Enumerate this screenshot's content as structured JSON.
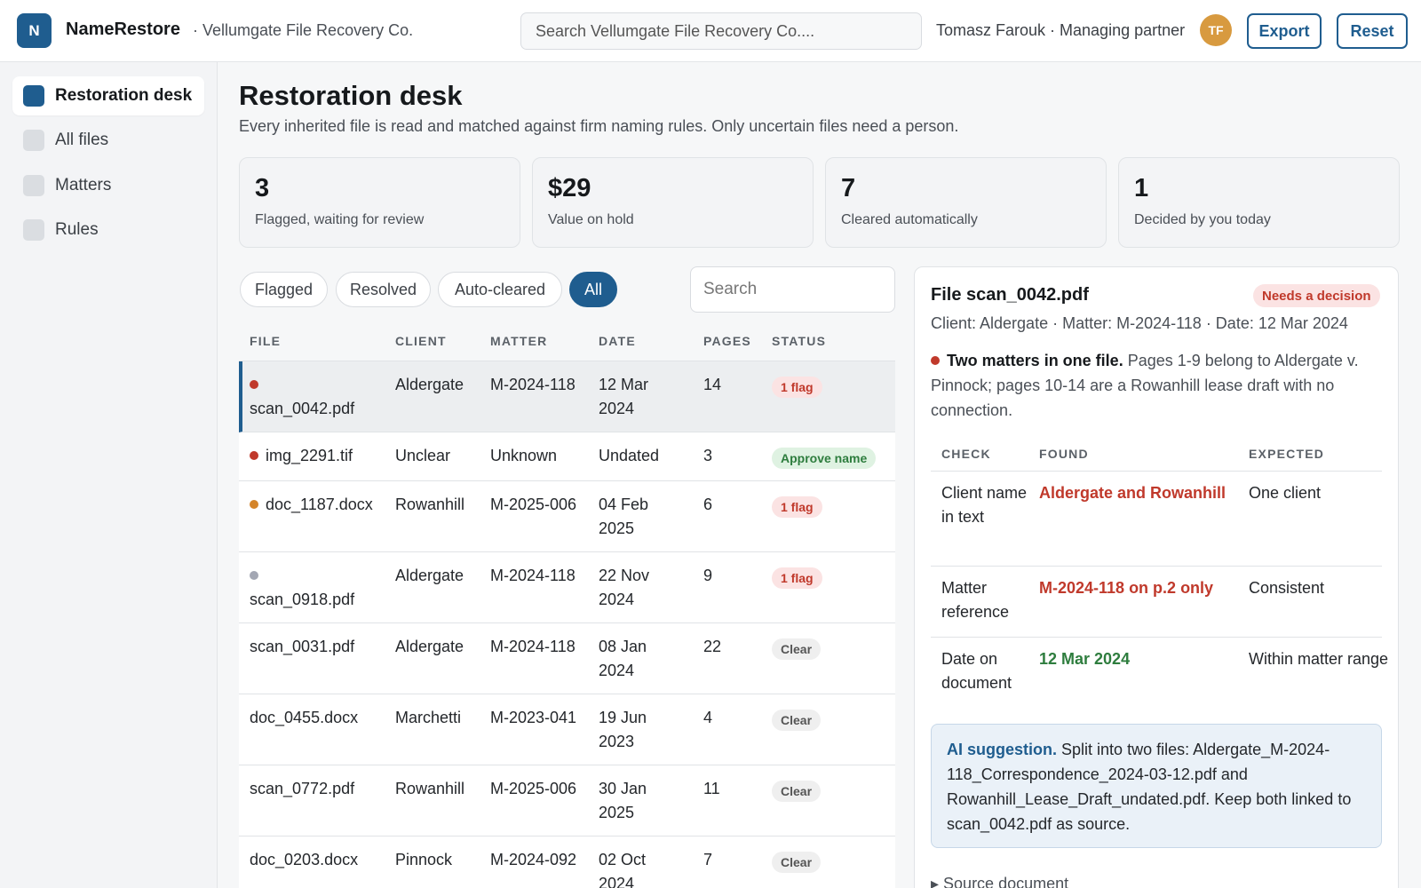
{
  "header": {
    "logo_letter": "N",
    "app_name": "NameRestore",
    "org_name": "· Vellumgate File Recovery Co.",
    "search_placeholder": "Search Vellumgate File Recovery Co....",
    "user": "Tomasz Farouk · Managing partner",
    "avatar_initials": "TF",
    "export_label": "Export",
    "reset_label": "Reset"
  },
  "sidebar": {
    "items": [
      {
        "label": "Restoration desk",
        "active": true
      },
      {
        "label": "All files",
        "active": false
      },
      {
        "label": "Matters",
        "active": false
      },
      {
        "label": "Rules",
        "active": false
      }
    ]
  },
  "main": {
    "title": "Restoration desk",
    "subtitle": "Every inherited file is read and matched against firm naming rules. Only uncertain files need a person."
  },
  "stats": [
    {
      "value": "3",
      "label": "Flagged, waiting for review"
    },
    {
      "value": "$29",
      "label": "Value on hold"
    },
    {
      "value": "7",
      "label": "Cleared automatically"
    },
    {
      "value": "1",
      "label": "Decided by you today"
    }
  ],
  "filters": {
    "chips": [
      "Flagged",
      "Resolved",
      "Auto-cleared",
      "All"
    ],
    "active": "All",
    "search_placeholder": "Search"
  },
  "table": {
    "headers": [
      "FILE",
      "CLIENT",
      "MATTER",
      "DATE",
      "PAGES",
      "STATUS"
    ],
    "rows": [
      {
        "file": "scan_0042.pdf",
        "client": "Aldergate",
        "matter": "M-2024-118",
        "date": "12 Mar 2024",
        "pages": "14",
        "status": "1 flag",
        "dot": "#c0392b"
      },
      {
        "file": "img_2291.tif",
        "client": "Unclear",
        "matter": "Unknown",
        "date": "Undated",
        "pages": "3",
        "status": "Approve name",
        "dot": "#c0392b"
      },
      {
        "file": "doc_1187.docx",
        "client": "Rowanhill",
        "matter": "M-2025-006",
        "date": "04 Feb 2025",
        "pages": "6",
        "status": "1 flag",
        "dot": "#d4842a"
      },
      {
        "file": "scan_0918.pdf",
        "client": "Aldergate",
        "matter": "M-2024-118",
        "date": "22 Nov 2024",
        "pages": "9",
        "status": "1 flag",
        "dot": "#a3a7b3"
      },
      {
        "file": "scan_0031.pdf",
        "client": "Aldergate",
        "matter": "M-2024-118",
        "date": "08 Jan 2024",
        "pages": "22",
        "status": "Clear",
        "dot": ""
      },
      {
        "file": "doc_0455.docx",
        "client": "Marchetti",
        "matter": "M-2023-041",
        "date": "19 Jun 2023",
        "pages": "4",
        "status": "Clear",
        "dot": ""
      },
      {
        "file": "scan_0772.pdf",
        "client": "Rowanhill",
        "matter": "M-2025-006",
        "date": "30 Jan 2025",
        "pages": "11",
        "status": "Clear",
        "dot": ""
      },
      {
        "file": "doc_0203.docx",
        "client": "Pinnock",
        "matter": "M-2024-092",
        "date": "02 Oct 2024",
        "pages": "7",
        "status": "Clear",
        "dot": ""
      }
    ]
  },
  "detail": {
    "title": "File scan_0042.pdf",
    "badge": "Needs a decision",
    "meta": "Client: Aldergate · Matter: M-2024-118 · Date: 12 Mar 2024",
    "issue_title": "Two matters in one file.",
    "issue_text": "Pages 1-9 belong to Aldergate v. Pinnock; pages 10-14 are a Rowanhill lease draft with no connection.",
    "checks_headers": [
      "CHECK",
      "FOUND",
      "EXPECTED"
    ],
    "checks": [
      {
        "check": "Client name in text",
        "found": "Aldergate and Rowanhill",
        "found_state": "bad",
        "expected": "One client"
      },
      {
        "check": "Matter reference",
        "found": "M-2024-118 on p.2 only",
        "found_state": "bad",
        "expected": "Consistent"
      },
      {
        "check": "Date on document",
        "found": "12 Mar 2024",
        "found_state": "good",
        "expected": "Within matter range"
      }
    ],
    "ai_label": "AI suggestion.",
    "ai_text": "Split into two files: Aldergate_M-2024-118_Correspondence_2024-03-12.pdf and Rowanhill_Lease_Draft_undated.pdf. Keep both linked to scan_0042.pdf as source.",
    "source_label": "▸ Source document"
  }
}
